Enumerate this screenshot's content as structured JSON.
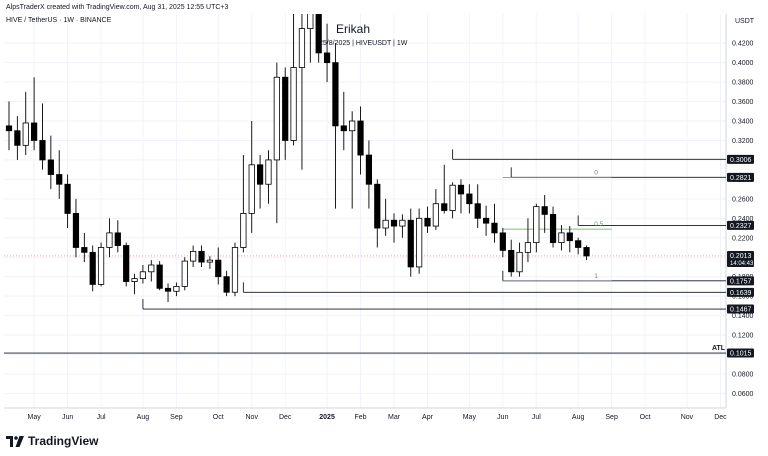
{
  "header": {
    "credit": "AlpsTraderX created with TradingView.com, Aug 31, 2025 12:55 UTC+3",
    "symbol_line": "HIVE / TetherUS · 1W · BINANCE",
    "currency": "USDT"
  },
  "overlay": {
    "title": "Erikah",
    "subtitle": "25/8/2025 | HIVEUSDT | 1W"
  },
  "branding": {
    "text": "TradingView",
    "icon": "tradingview-logo-icon"
  },
  "colors": {
    "candle_up_fill": "#ffffff",
    "candle_down_fill": "#000000",
    "candle_outline": "#000000",
    "fib_level": "#787b86",
    "fib_mid": "#4caf50",
    "current_price_line": "#f7525f",
    "label_bg": "#131722",
    "grid": "#f0f3fa"
  },
  "chart_data": {
    "type": "candlestick",
    "y_scale": "linear",
    "ylim": [
      0.045,
      0.45
    ],
    "y_ticks": [
      "0.0600",
      "0.0800",
      "0.1000",
      "0.1200",
      "0.1400",
      "0.1600",
      "0.1800",
      "0.2000",
      "0.2200",
      "0.2400",
      "0.2600",
      "0.2800",
      "0.3000",
      "0.3200",
      "0.3400",
      "0.3600",
      "0.3800",
      "0.4000",
      "0.4200"
    ],
    "x_ticks": [
      {
        "label": "May",
        "week": 3
      },
      {
        "label": "Jun",
        "week": 7
      },
      {
        "label": "Jul",
        "week": 11
      },
      {
        "label": "Aug",
        "week": 16
      },
      {
        "label": "Sep",
        "week": 20
      },
      {
        "label": "Oct",
        "week": 25
      },
      {
        "label": "Nov",
        "week": 29
      },
      {
        "label": "Dec",
        "week": 33
      },
      {
        "label": "2025",
        "week": 38
      },
      {
        "label": "Feb",
        "week": 42
      },
      {
        "label": "Mar",
        "week": 46
      },
      {
        "label": "Apr",
        "week": 50
      },
      {
        "label": "May",
        "week": 55
      },
      {
        "label": "Jun",
        "week": 59
      },
      {
        "label": "Jul",
        "week": 63
      },
      {
        "label": "Aug",
        "week": 68
      },
      {
        "label": "Sep",
        "week": 72
      },
      {
        "label": "Oct",
        "week": 76
      },
      {
        "label": "Nov",
        "week": 81
      },
      {
        "label": "Dec",
        "week": 85
      }
    ],
    "candles": [
      [
        0.335,
        0.36,
        0.31,
        0.33
      ],
      [
        0.33,
        0.345,
        0.3,
        0.315
      ],
      [
        0.315,
        0.37,
        0.305,
        0.338
      ],
      [
        0.338,
        0.385,
        0.31,
        0.32
      ],
      [
        0.32,
        0.358,
        0.29,
        0.3
      ],
      [
        0.3,
        0.325,
        0.27,
        0.285
      ],
      [
        0.285,
        0.31,
        0.26,
        0.275
      ],
      [
        0.275,
        0.285,
        0.23,
        0.245
      ],
      [
        0.245,
        0.26,
        0.2,
        0.21
      ],
      [
        0.21,
        0.225,
        0.195,
        0.205
      ],
      [
        0.205,
        0.212,
        0.165,
        0.172
      ],
      [
        0.172,
        0.215,
        0.17,
        0.21
      ],
      [
        0.21,
        0.24,
        0.2,
        0.225
      ],
      [
        0.225,
        0.238,
        0.205,
        0.212
      ],
      [
        0.212,
        0.215,
        0.17,
        0.175
      ],
      [
        0.175,
        0.183,
        0.162,
        0.178
      ],
      [
        0.178,
        0.192,
        0.173,
        0.185
      ],
      [
        0.185,
        0.197,
        0.175,
        0.192
      ],
      [
        0.192,
        0.196,
        0.166,
        0.168
      ],
      [
        0.168,
        0.173,
        0.154,
        0.165
      ],
      [
        0.165,
        0.174,
        0.16,
        0.17
      ],
      [
        0.17,
        0.2,
        0.166,
        0.196
      ],
      [
        0.196,
        0.212,
        0.19,
        0.206
      ],
      [
        0.206,
        0.212,
        0.19,
        0.195
      ],
      [
        0.195,
        0.201,
        0.188,
        0.197
      ],
      [
        0.197,
        0.21,
        0.172,
        0.18
      ],
      [
        0.18,
        0.186,
        0.16,
        0.164
      ],
      [
        0.164,
        0.215,
        0.16,
        0.21
      ],
      [
        0.21,
        0.305,
        0.205,
        0.245
      ],
      [
        0.245,
        0.34,
        0.225,
        0.295
      ],
      [
        0.295,
        0.305,
        0.25,
        0.275
      ],
      [
        0.275,
        0.31,
        0.255,
        0.3
      ],
      [
        0.3,
        0.4,
        0.235,
        0.385
      ],
      [
        0.385,
        0.395,
        0.3,
        0.32
      ],
      [
        0.32,
        0.45,
        0.315,
        0.395
      ],
      [
        0.395,
        0.47,
        0.29,
        0.435
      ],
      [
        0.435,
        0.52,
        0.4,
        0.51
      ],
      [
        0.51,
        0.52,
        0.4,
        0.41
      ],
      [
        0.41,
        0.44,
        0.38,
        0.4
      ],
      [
        0.4,
        0.42,
        0.25,
        0.335
      ],
      [
        0.335,
        0.37,
        0.31,
        0.33
      ],
      [
        0.33,
        0.35,
        0.25,
        0.34
      ],
      [
        0.34,
        0.355,
        0.285,
        0.305
      ],
      [
        0.305,
        0.32,
        0.25,
        0.275
      ],
      [
        0.275,
        0.28,
        0.21,
        0.23
      ],
      [
        0.23,
        0.26,
        0.222,
        0.238
      ],
      [
        0.238,
        0.245,
        0.215,
        0.232
      ],
      [
        0.232,
        0.244,
        0.22,
        0.238
      ],
      [
        0.238,
        0.25,
        0.18,
        0.19
      ],
      [
        0.19,
        0.25,
        0.183,
        0.24
      ],
      [
        0.24,
        0.252,
        0.225,
        0.232
      ],
      [
        0.232,
        0.27,
        0.228,
        0.255
      ],
      [
        0.255,
        0.295,
        0.245,
        0.248
      ],
      [
        0.248,
        0.277,
        0.24,
        0.274
      ],
      [
        0.274,
        0.28,
        0.245,
        0.265
      ],
      [
        0.265,
        0.275,
        0.245,
        0.255
      ],
      [
        0.255,
        0.275,
        0.23,
        0.24
      ],
      [
        0.24,
        0.253,
        0.222,
        0.235
      ],
      [
        0.235,
        0.255,
        0.215,
        0.225
      ],
      [
        0.225,
        0.23,
        0.2,
        0.207
      ],
      [
        0.207,
        0.218,
        0.18,
        0.185
      ],
      [
        0.185,
        0.215,
        0.18,
        0.205
      ],
      [
        0.205,
        0.24,
        0.195,
        0.215
      ],
      [
        0.215,
        0.255,
        0.205,
        0.252
      ],
      [
        0.252,
        0.264,
        0.225,
        0.244
      ],
      [
        0.244,
        0.252,
        0.21,
        0.215
      ],
      [
        0.215,
        0.233,
        0.207,
        0.225
      ],
      [
        0.225,
        0.232,
        0.205,
        0.217
      ],
      [
        0.217,
        0.22,
        0.203,
        0.21
      ],
      [
        0.21,
        0.212,
        0.197,
        0.2013
      ]
    ],
    "horizontal_levels": [
      {
        "price": 0.3006,
        "label": "0.3006",
        "from_week": 53
      },
      {
        "price": 0.2821,
        "label": "0.2821",
        "from_week": 60
      },
      {
        "price": 0.2327,
        "label": "0.2327",
        "from_week": 68
      },
      {
        "price": 0.1757,
        "label": "0.1757",
        "from_week": 59
      },
      {
        "price": 0.1639,
        "label": "0.1639",
        "from_week": 28
      },
      {
        "price": 0.1467,
        "label": "0.1467",
        "from_week": 16
      },
      {
        "price": 0.1015,
        "label": "0.1015",
        "from_week": 0,
        "tag": "ATL"
      }
    ],
    "fib": [
      {
        "level": "0",
        "price": 0.2821
      },
      {
        "level": "0.5",
        "price": 0.2289
      },
      {
        "level": "1",
        "price": 0.1757
      }
    ],
    "fib_start_week": 59,
    "fib_end_week": 72,
    "current_price": {
      "value": 0.2013,
      "label": "0.2013",
      "countdown": "14:04:43"
    }
  }
}
